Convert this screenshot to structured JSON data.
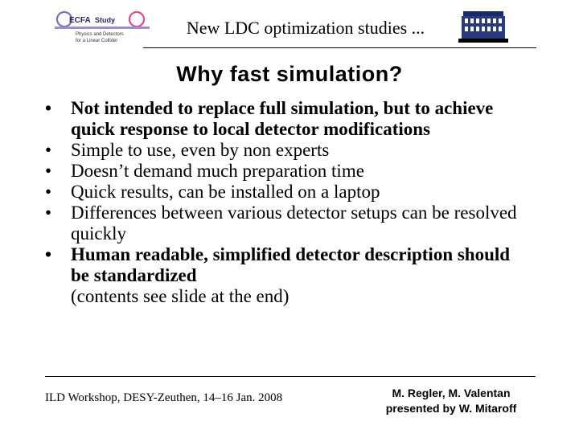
{
  "header": {
    "title": "New LDC optimization studies ...",
    "logo_left": {
      "name": "ecfa-study-logo",
      "text_main": "ECFA",
      "text_study": "Study",
      "text_sub1": "Physics and Detectors",
      "text_sub2": "for a Linear Collider"
    },
    "logo_right": {
      "name": "institute-logo"
    }
  },
  "slide": {
    "title": "Why fast simulation?",
    "bullets": [
      {
        "text": "Not intended to replace full simulation, but to achieve quick response to local detector modifications",
        "bold": true
      },
      {
        "text": "Simple to use, even by non experts",
        "bold": false
      },
      {
        "text": "Doesn’t demand much preparation time",
        "bold": false
      },
      {
        "text": "Quick results, can be installed on a laptop",
        "bold": false
      },
      {
        "text": "Differences between various detector setups can be resolved quickly",
        "bold": false
      },
      {
        "text": "Human readable, simplified detector description should be standardized",
        "bold": true,
        "extra": "(contents see slide at the end)"
      }
    ]
  },
  "footer": {
    "left": "ILD Workshop, DESY-Zeuthen, 14–16 Jan. 2008",
    "right_line1": "M. Regler, M. Valentan",
    "right_line2": "presented by W. Mitaroff"
  }
}
